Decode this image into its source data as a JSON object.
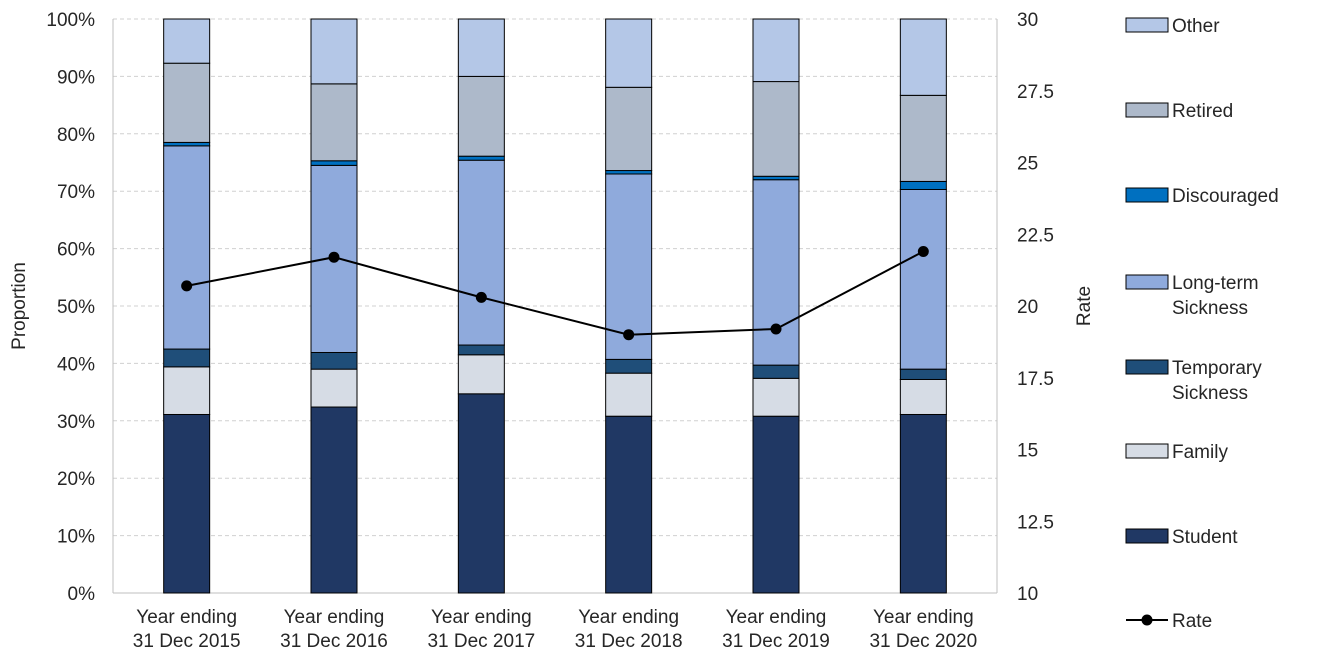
{
  "chart_data": {
    "type": "bar",
    "stacked": true,
    "categories": [
      [
        "Year ending",
        "31 Dec 2015"
      ],
      [
        "Year ending",
        "31 Dec 2016"
      ],
      [
        "Year ending",
        "31 Dec 2017"
      ],
      [
        "Year ending",
        "31 Dec 2018"
      ],
      [
        "Year ending",
        "31 Dec 2019"
      ],
      [
        "Year ending",
        "31 Dec 2020"
      ]
    ],
    "series": [
      {
        "name": "Student",
        "color": "#203864",
        "values": [
          31.1,
          32.4,
          34.7,
          30.8,
          30.8,
          31.1
        ]
      },
      {
        "name": "Family",
        "color": "#D6DCE5",
        "values": [
          8.3,
          6.6,
          6.8,
          7.5,
          6.6,
          6.1
        ]
      },
      {
        "name": "Temporary Sickness",
        "color": "#1F4E79",
        "values": [
          3.1,
          2.9,
          1.7,
          2.4,
          2.3,
          1.8
        ]
      },
      {
        "name": "Long-term Sickness",
        "color": "#8FAADC",
        "values": [
          35.4,
          32.6,
          32.2,
          32.3,
          32.3,
          31.3
        ]
      },
      {
        "name": "Discouraged",
        "color": "#0070C0",
        "values": [
          0.6,
          0.8,
          0.7,
          0.6,
          0.6,
          1.4
        ]
      },
      {
        "name": "Retired",
        "color": "#ADB9CA",
        "values": [
          13.8,
          13.4,
          13.9,
          14.5,
          16.5,
          15.0
        ]
      },
      {
        "name": "Other",
        "color": "#B4C7E7",
        "values": [
          7.7,
          11.3,
          10.0,
          11.9,
          10.9,
          13.3
        ]
      }
    ],
    "line_series": {
      "name": "Rate",
      "color": "#000000",
      "axis": "right",
      "values": [
        20.7,
        21.7,
        20.3,
        19.0,
        19.2,
        21.9
      ]
    },
    "ylabel": "Proportion",
    "y2label": "Rate",
    "ylim": [
      0,
      100
    ],
    "y2lim": [
      10,
      30
    ],
    "yticks": [
      "0%",
      "10%",
      "20%",
      "30%",
      "40%",
      "50%",
      "60%",
      "70%",
      "80%",
      "90%",
      "100%"
    ],
    "y2ticks": [
      "10",
      "12.5",
      "15",
      "17.5",
      "20",
      "22.5",
      "25",
      "27.5",
      "30"
    ],
    "legend": {
      "position": "right",
      "items": [
        {
          "label": [
            "Other"
          ],
          "color": "#B4C7E7",
          "kind": "box"
        },
        {
          "label": [
            "Retired"
          ],
          "color": "#ADB9CA",
          "kind": "box"
        },
        {
          "label": [
            "Discouraged"
          ],
          "color": "#0070C0",
          "kind": "box"
        },
        {
          "label": [
            "Long-term",
            "Sickness"
          ],
          "color": "#8FAADC",
          "kind": "box"
        },
        {
          "label": [
            "Temporary",
            "Sickness"
          ],
          "color": "#1F4E79",
          "kind": "box"
        },
        {
          "label": [
            "Family"
          ],
          "color": "#D6DCE5",
          "kind": "box"
        },
        {
          "label": [
            "Student"
          ],
          "color": "#203864",
          "kind": "box"
        },
        {
          "label": [
            "Rate"
          ],
          "color": "#000000",
          "kind": "line"
        }
      ]
    },
    "grid": "horizontal dashed"
  }
}
